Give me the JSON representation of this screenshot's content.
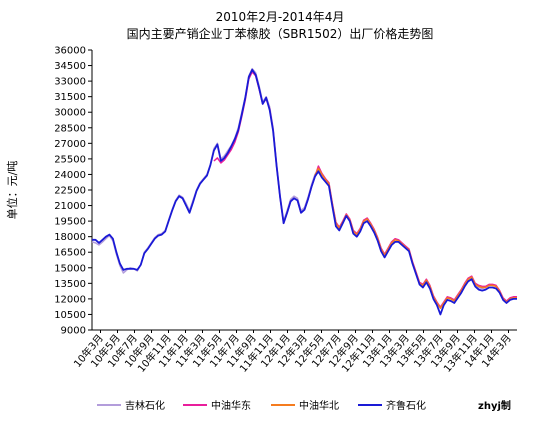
{
  "chart_data": {
    "type": "line",
    "title": "2010年2月-2014年4月",
    "subtitle": "国内主要产销企业丁苯橡胶（SBR1502）出厂价格走势图",
    "ylabel": "单位：元/吨",
    "xlabel": "",
    "credit": "zhyj制",
    "ylim": [
      9000,
      36000
    ],
    "ytick_step": 1500,
    "grid": false,
    "legend_position": "bottom",
    "x_tick_labels": [
      "10年3月",
      "10年5月",
      "10年7月",
      "10年9月",
      "10年11月",
      "11年1月",
      "11年3月",
      "11年5月",
      "11年7月",
      "11年9月",
      "11年11月",
      "12年1月",
      "12年3月",
      "12年5月",
      "12年7月",
      "12年9月",
      "12年11月",
      "13年1月",
      "13年3月",
      "13年5月",
      "13年7月",
      "13年9月",
      "13年11月",
      "14年1月",
      "14年3月"
    ],
    "series": [
      {
        "name": "吉林石化",
        "color": "#b39ddb",
        "values": [
          17500,
          17400,
          17200,
          17500,
          17800,
          18100,
          17600,
          16300,
          15200,
          14500,
          14800,
          15000,
          14900,
          14700,
          15300,
          16500,
          16900,
          17400,
          17900,
          18200,
          18300,
          18600,
          19600,
          20600,
          21500,
          22000,
          21800,
          21200,
          20500,
          21500,
          22500,
          23200,
          23600,
          24000,
          25000,
          26500,
          27000,
          25500,
          25800,
          26300,
          26800,
          27500,
          28500,
          30000,
          31500,
          33500,
          34200,
          33800,
          32500,
          31000,
          31500,
          30500,
          28500,
          25000,
          22000,
          19500,
          20500,
          21600,
          21900,
          21700,
          20500,
          20800,
          21800,
          23000,
          24000,
          24500,
          23800,
          23400,
          23000,
          21000,
          19200,
          18700,
          19400,
          20100,
          19600,
          18500,
          18200,
          18700,
          19500,
          19700,
          19200,
          18600,
          17800,
          16800,
          16200,
          16800,
          17400,
          17700,
          17600,
          17300,
          17000,
          16700,
          15500,
          14500,
          13500,
          13200,
          13800,
          13200,
          12200,
          11600,
          11100,
          11600,
          12100,
          12000,
          11800,
          12300,
          12800,
          13400,
          13900,
          14100,
          13400,
          13100,
          13000,
          13100,
          13300,
          13300,
          13200,
          12700,
          12000,
          11700,
          12000,
          12100,
          12100
        ]
      },
      {
        "name": "中油华东",
        "color": "#e91e9c",
        "values": [
          null,
          null,
          null,
          null,
          null,
          null,
          null,
          null,
          null,
          null,
          null,
          null,
          null,
          null,
          null,
          null,
          null,
          null,
          null,
          null,
          null,
          null,
          null,
          null,
          null,
          null,
          null,
          null,
          null,
          null,
          null,
          null,
          null,
          null,
          null,
          25300,
          25600,
          25100,
          25400,
          25900,
          26400,
          27100,
          28100,
          29600,
          31200,
          33200,
          33900,
          33500,
          32200,
          30800,
          31300,
          30300,
          28300,
          24800,
          21800,
          19300,
          20300,
          21400,
          21700,
          21500,
          20300,
          20600,
          21600,
          22800,
          23800,
          24800,
          24100,
          23600,
          23200,
          21200,
          19400,
          18900,
          19500,
          20200,
          19700,
          18600,
          18300,
          18800,
          19600,
          19800,
          19300,
          18700,
          17900,
          16900,
          16300,
          16900,
          17500,
          17800,
          17700,
          17400,
          17100,
          16800,
          15600,
          14600,
          13600,
          13400,
          13900,
          13300,
          12300,
          11700,
          11200,
          11700,
          12200,
          12100,
          11900,
          12400,
          12900,
          13500,
          14000,
          14200,
          13500,
          13300,
          13200,
          13200,
          13400,
          13400,
          13300,
          12800,
          12100,
          11800,
          12100,
          12200,
          12200
        ]
      },
      {
        "name": "中油华北",
        "color": "#f57c1f",
        "values": [
          null,
          null,
          null,
          null,
          null,
          null,
          null,
          null,
          null,
          null,
          null,
          null,
          null,
          null,
          null,
          null,
          null,
          null,
          null,
          null,
          null,
          null,
          null,
          null,
          null,
          null,
          null,
          null,
          null,
          null,
          null,
          null,
          null,
          null,
          null,
          null,
          null,
          null,
          null,
          null,
          null,
          null,
          null,
          null,
          null,
          null,
          null,
          null,
          null,
          null,
          null,
          null,
          null,
          null,
          null,
          null,
          null,
          null,
          null,
          null,
          null,
          null,
          null,
          null,
          23900,
          24600,
          24000,
          23500,
          23100,
          21100,
          19300,
          18800,
          19400,
          20100,
          19600,
          18500,
          18200,
          18700,
          19500,
          19700,
          19200,
          18600,
          17800,
          16800,
          16200,
          16800,
          17400,
          17700,
          17600,
          17300,
          17000,
          16700,
          15500,
          14500,
          13500,
          13300,
          13800,
          13200,
          12200,
          11600,
          11100,
          11600,
          12100,
          12000,
          11800,
          12300,
          12800,
          13400,
          13900,
          14100,
          13400,
          13200,
          13100,
          13100,
          13300,
          13300,
          13200,
          12700,
          12000,
          11700,
          12000,
          12100,
          12100
        ]
      },
      {
        "name": "齐鲁石化",
        "color": "#1a1ad6",
        "values": [
          17700,
          17700,
          17400,
          17700,
          18000,
          18200,
          17800,
          16500,
          15400,
          14800,
          14900,
          14900,
          14900,
          14800,
          15300,
          16400,
          16800,
          17300,
          17800,
          18100,
          18200,
          18500,
          19500,
          20500,
          21400,
          21900,
          21700,
          21000,
          20300,
          21300,
          22400,
          23100,
          23500,
          23900,
          24900,
          26300,
          26900,
          25300,
          25600,
          26100,
          26700,
          27400,
          28300,
          29800,
          31400,
          33400,
          34100,
          33600,
          32300,
          30800,
          31400,
          30200,
          28200,
          24800,
          21800,
          19300,
          20300,
          21400,
          21700,
          21500,
          20300,
          20600,
          21600,
          22800,
          23800,
          24300,
          23700,
          23300,
          22900,
          20900,
          19000,
          18600,
          19300,
          20000,
          19500,
          18300,
          18000,
          18500,
          19300,
          19500,
          19000,
          18400,
          17600,
          16600,
          16000,
          16600,
          17200,
          17500,
          17500,
          17200,
          16900,
          16600,
          15400,
          14400,
          13400,
          13100,
          13600,
          13000,
          12000,
          11400,
          10500,
          11400,
          11900,
          11800,
          11600,
          12100,
          12600,
          13200,
          13700,
          13900,
          13200,
          12900,
          12800,
          12900,
          13100,
          13100,
          13000,
          12600,
          11900,
          11600,
          11900,
          12000,
          12000
        ]
      }
    ]
  }
}
